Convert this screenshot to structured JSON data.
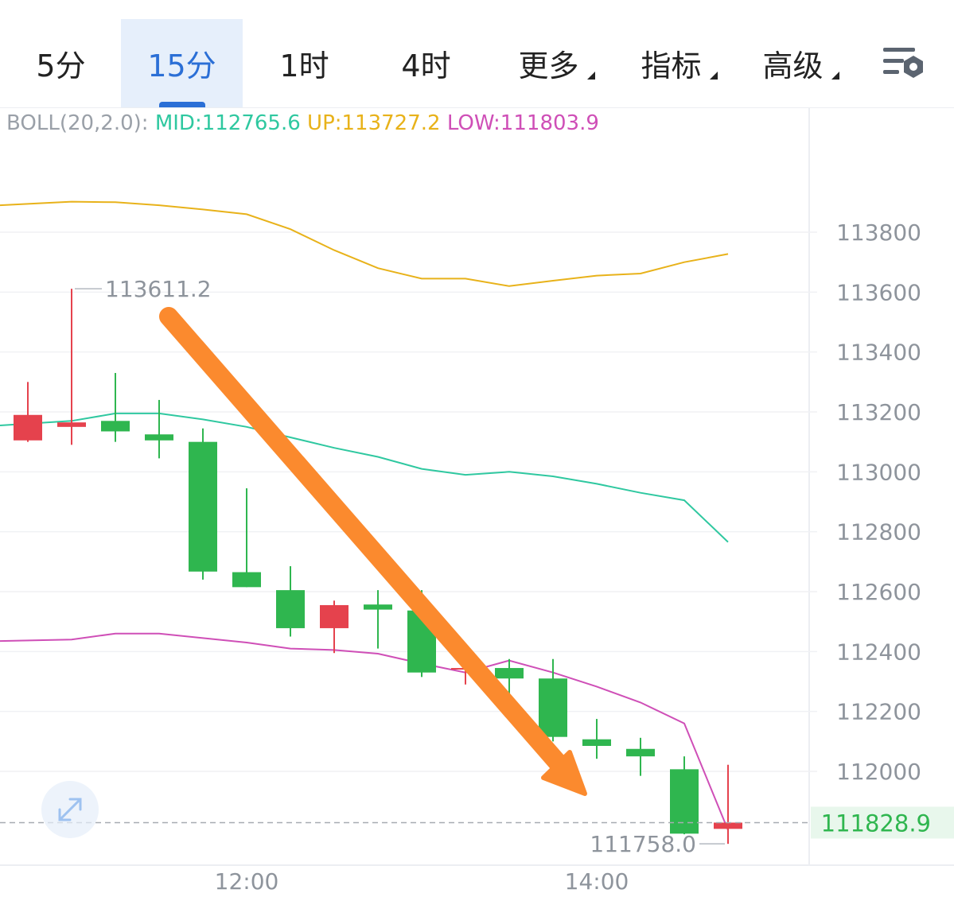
{
  "tabs": [
    {
      "label": "5分",
      "active": false,
      "dropdown": false
    },
    {
      "label": "15分",
      "active": true,
      "dropdown": false
    },
    {
      "label": "1时",
      "active": false,
      "dropdown": false
    },
    {
      "label": "4时",
      "active": false,
      "dropdown": false
    },
    {
      "label": "更多",
      "active": false,
      "dropdown": true
    },
    {
      "label": "指标",
      "active": false,
      "dropdown": true
    },
    {
      "label": "高级",
      "active": false,
      "dropdown": true
    }
  ],
  "settings_icon": "chart-settings-icon",
  "boll": {
    "label": "BOLL(20,2.0):",
    "mid": "MID:112765.6",
    "up": "UP:113727.2",
    "low": "LOW:111803.9"
  },
  "colors": {
    "up": "#e5424d",
    "down": "#2fb64f",
    "mid": "#2fc8a0",
    "upper": "#e8b21a",
    "lower": "#cf4fb7",
    "arrow": "#fb8a2e",
    "price_tag": "#2fb64f"
  },
  "chart_data": {
    "type": "candlestick",
    "y_ticks": [
      113800,
      113600,
      113400,
      113200,
      113000,
      112800,
      112600,
      112400,
      112200,
      112000
    ],
    "x_ticks": [
      "12:00",
      "14:00"
    ],
    "high_label": "113611.2",
    "low_label": "111758.0",
    "current_price": "111828.9",
    "candles": [
      {
        "open": 113105,
        "close": 113190,
        "high": 113300,
        "low": 113100
      },
      {
        "open": 113150,
        "close": 113165,
        "high": 113611.2,
        "low": 113090
      },
      {
        "open": 113170,
        "close": 113135,
        "high": 113330,
        "low": 113100
      },
      {
        "open": 113125,
        "close": 113105,
        "high": 113240,
        "low": 113045
      },
      {
        "open": 113100,
        "close": 112667,
        "high": 113145,
        "low": 112640
      },
      {
        "open": 112665,
        "close": 112615,
        "high": 112945,
        "low": 112615
      },
      {
        "open": 112605,
        "close": 112478,
        "high": 112685,
        "low": 112450
      },
      {
        "open": 112478,
        "close": 112555,
        "high": 112570,
        "low": 112395
      },
      {
        "open": 112557,
        "close": 112540,
        "high": 112605,
        "low": 112410
      },
      {
        "open": 112537,
        "close": 112330,
        "high": 112605,
        "low": 112315
      },
      {
        "open": 112345,
        "close": 112345,
        "high": 112425,
        "low": 112290
      },
      {
        "open": 112345,
        "close": 112310,
        "high": 112375,
        "low": 112200
      },
      {
        "open": 112310,
        "close": 112115,
        "high": 112375,
        "low": 112100
      },
      {
        "open": 112107,
        "close": 112085,
        "high": 112175,
        "low": 112042
      },
      {
        "open": 112075,
        "close": 112050,
        "high": 112112,
        "low": 111985
      },
      {
        "open": 112007,
        "close": 111792,
        "high": 112050,
        "low": 111790
      },
      {
        "open": 111808,
        "close": 111828.9,
        "high": 112022,
        "low": 111758.0
      }
    ],
    "boll_upper": [
      113890,
      113902,
      113900,
      113890,
      113876,
      113860,
      113810,
      113740,
      113680,
      113645,
      113645,
      113620,
      113638,
      113655,
      113662,
      113700,
      113727.2
    ],
    "boll_mid": [
      113155,
      113170,
      113195,
      113195,
      113175,
      113150,
      113115,
      113080,
      113050,
      113010,
      112990,
      113000,
      112985,
      112960,
      112930,
      112905,
      112765.6
    ],
    "boll_lower": [
      112435,
      112440,
      112460,
      112460,
      112445,
      112430,
      112410,
      112405,
      112393,
      112360,
      112330,
      112370,
      112330,
      112283,
      112230,
      112160,
      111803.9
    ]
  }
}
